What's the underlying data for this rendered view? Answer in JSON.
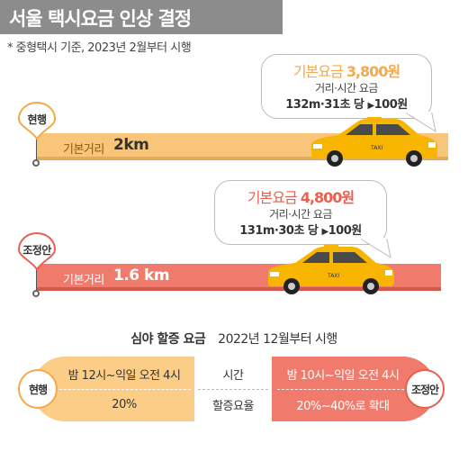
{
  "title": "서울 택시요금 인상 결정",
  "note": "* 중형택시 기준, 2023년 2월부터 시행",
  "current": {
    "pin_label": "현행",
    "fare_label": "기본요금",
    "fare_value": "3,800원",
    "rate_label": "거리·시간 요금",
    "rate_text": "132m·31초 당",
    "rate_arrow": "▶",
    "rate_value": "100원",
    "dist_label": "기본거리",
    "dist_value": "2km"
  },
  "adjusted": {
    "pin_label": "조정안",
    "fare_label": "기본요금",
    "fare_value": "4,800원",
    "rate_label": "거리·시간 요금",
    "rate_text": "131m·30초 당",
    "rate_arrow": "▶",
    "rate_value": "100원",
    "dist_label": "기본거리",
    "dist_value": "1.6 km"
  },
  "taxi_text": "TAXI",
  "night": {
    "title": "심야 할증 요금",
    "subtitle": "2022년 12월부터 시행",
    "left_pin": "현행",
    "right_pin": "조정안",
    "row_labels": [
      "시간",
      "할증요율"
    ],
    "current_values": [
      "밤 12시~익일 오전 4시",
      "20%"
    ],
    "adjusted_values": [
      "밤 10시~익일 오전 4시",
      "20%~40%로 확대"
    ]
  },
  "colors": {
    "current_accent": "#f5a94a",
    "adjusted_accent": "#e8604f",
    "current_fill": "#fbcd86",
    "adjusted_fill": "#f07b6c",
    "taxi_yellow": "#f7b500"
  }
}
